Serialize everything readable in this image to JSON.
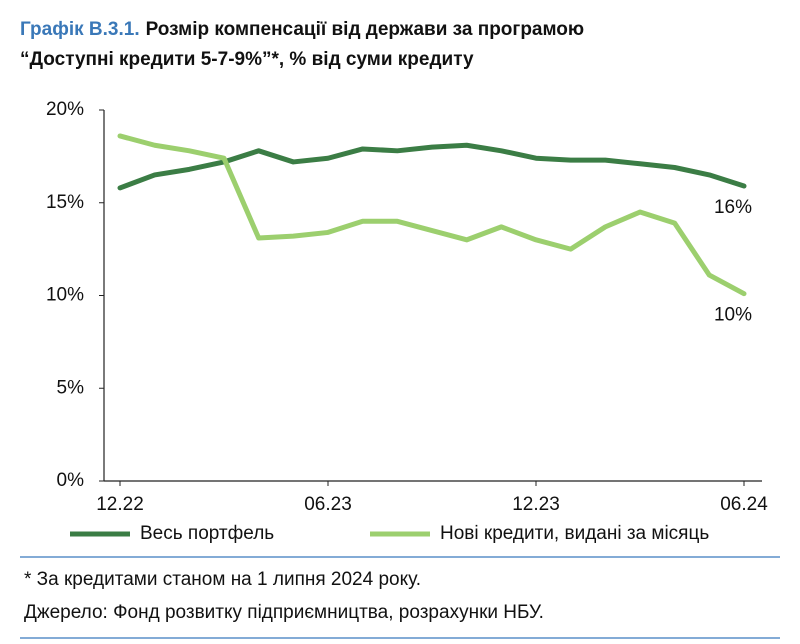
{
  "chart_data": {
    "type": "line",
    "title_label": "Графік В.3.1.",
    "title": [
      "Розмір компенсації від держави за програмою",
      "“Доступні кредити 5-7-9%”*, % від суми кредиту"
    ],
    "categories": [
      "12.22",
      null,
      null,
      null,
      null,
      null,
      "06.23",
      null,
      null,
      null,
      null,
      null,
      "12.23",
      null,
      null,
      null,
      null,
      null,
      "06.24"
    ],
    "series": [
      {
        "name": "Весь портфель",
        "color": "#3b7d45",
        "values": [
          15.8,
          16.5,
          16.8,
          17.2,
          17.8,
          17.2,
          17.4,
          17.9,
          17.8,
          18.0,
          18.1,
          17.8,
          17.4,
          17.3,
          17.3,
          17.1,
          16.9,
          16.5,
          15.9
        ],
        "value_labels": [
          null,
          null,
          null,
          null,
          null,
          null,
          null,
          null,
          null,
          null,
          null,
          null,
          null,
          null,
          null,
          null,
          null,
          null,
          "16%"
        ]
      },
      {
        "name": "Нові кредити, видані за місяць",
        "color": "#9ccf6e",
        "values": [
          18.6,
          18.1,
          17.8,
          17.4,
          13.1,
          13.2,
          13.4,
          14.0,
          14.0,
          13.5,
          13.0,
          13.7,
          13.0,
          12.5,
          13.7,
          14.5,
          13.9,
          11.1,
          10.1
        ],
        "value_labels": [
          null,
          null,
          null,
          null,
          null,
          null,
          null,
          null,
          null,
          null,
          null,
          null,
          null,
          null,
          null,
          null,
          null,
          null,
          "10%"
        ]
      }
    ],
    "ylim": [
      0,
      20
    ],
    "yticks": [
      {
        "value": 0,
        "label": "0%"
      },
      {
        "value": 5,
        "label": "5%"
      },
      {
        "value": 10,
        "label": "10%"
      },
      {
        "value": 15,
        "label": "15%"
      },
      {
        "value": 20,
        "label": "20%"
      }
    ],
    "footnote": "* За кредитами станом на 1 липня 2024 року.",
    "source": "Джерело: Фонд розвитку підприємництва, розрахунки НБУ."
  }
}
